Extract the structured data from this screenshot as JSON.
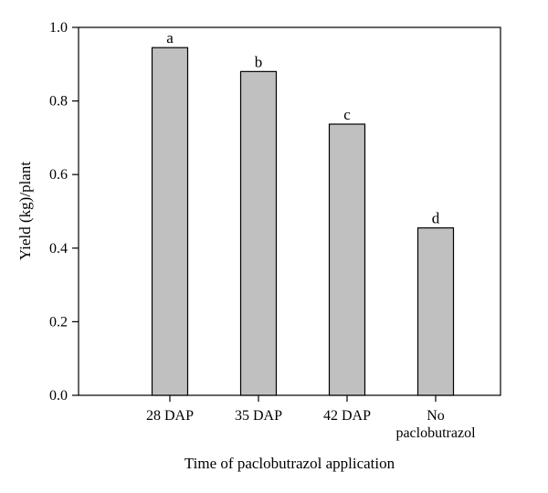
{
  "chart_data": {
    "type": "bar",
    "categories": [
      "28 DAP",
      "35 DAP",
      "42 DAP",
      "No paclobutrazol"
    ],
    "category_lines": [
      [
        "28 DAP"
      ],
      [
        "35 DAP"
      ],
      [
        "42 DAP"
      ],
      [
        "No",
        "paclobutrazol"
      ]
    ],
    "values": [
      0.945,
      0.88,
      0.737,
      0.455
    ],
    "bar_labels": [
      "a",
      "b",
      "c",
      "d"
    ],
    "xlabel": "Time of paclobutrazol application",
    "ylabel": "Yield (kg)/plant",
    "ylim": [
      0,
      1.0
    ],
    "yticks": [
      0.0,
      0.2,
      0.4,
      0.6,
      0.8,
      1.0
    ],
    "ytick_labels": [
      "0.0",
      "0.2",
      "0.4",
      "0.6",
      "0.8",
      "1.0"
    ],
    "grid": false,
    "legend": "none",
    "colors": {
      "bar_fill": "#c0c0c0",
      "bar_stroke": "#000000",
      "axis": "#000000"
    }
  }
}
